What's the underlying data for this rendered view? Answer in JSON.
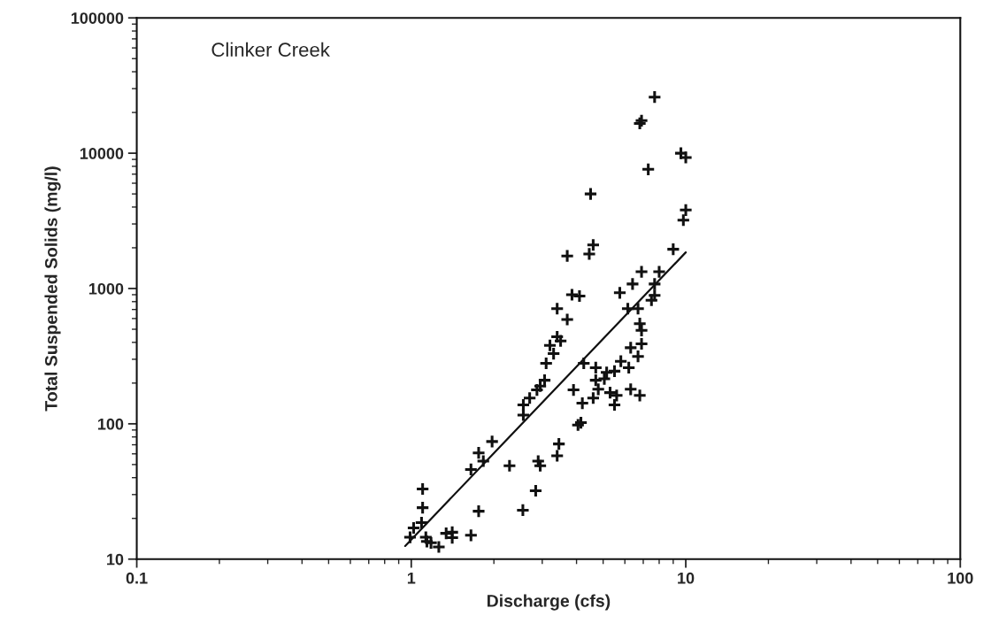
{
  "chart_data": {
    "type": "scatter",
    "xlabel": "Discharge (cfs)",
    "ylabel": "Total Suspended Solids (mg/l)",
    "annotations": [
      "Clinker Creek"
    ],
    "log": "xy",
    "xlim": [
      0.1,
      100
    ],
    "xticks": [
      0.1,
      1,
      10,
      100
    ],
    "ylim": [
      10,
      100000
    ],
    "yticks": [
      10,
      100,
      1000,
      10000,
      100000
    ],
    "grid": false,
    "series": [
      {
        "marker": "cross",
        "color": "#111111",
        "x": [
          7.7,
          6.8,
          6.9,
          9.6,
          10,
          7.3,
          4.5,
          10,
          9.8,
          9.0,
          4.6,
          4.45,
          3.7,
          6.9,
          8.0,
          6.4,
          7.7,
          5.75,
          3.85,
          4.1,
          3.4,
          3.7,
          6.15,
          6.7,
          7.7,
          7.5,
          6.8,
          6.9,
          6.9,
          6.3,
          6.7,
          5.8,
          3.4,
          3.5,
          3.3,
          4.25,
          4.7,
          5.15,
          5.5,
          6.2,
          4.7,
          5.05,
          3.9,
          4.8,
          5.3,
          5.6,
          6.3,
          6.8,
          5.5,
          4.6,
          4.2,
          4.05,
          4.15,
          3.2,
          3.1,
          3.06,
          2.95,
          2.87,
          2.7,
          2.56,
          2.56,
          1.97,
          1.76,
          1.83,
          1.65,
          2.28,
          2.9,
          2.95,
          3.45,
          3.4,
          2.84,
          2.55,
          1.76,
          1.65,
          1.1,
          1.1,
          1.09,
          1.02,
          0.99,
          1.13,
          1.18,
          1.26,
          1.34,
          1.41,
          1.41,
          1.14
        ],
        "values": [
          26000,
          16600,
          17400,
          10000,
          9300,
          7600,
          5000,
          3800,
          3200,
          1950,
          2100,
          1800,
          1740,
          1330,
          1330,
          1080,
          1080,
          930,
          900,
          880,
          710,
          590,
          710,
          710,
          890,
          820,
          550,
          490,
          390,
          365,
          315,
          290,
          440,
          410,
          330,
          280,
          260,
          240,
          245,
          260,
          210,
          215,
          178,
          180,
          170,
          162,
          180,
          162,
          138,
          155,
          142,
          98,
          102,
          380,
          280,
          210,
          190,
          178,
          155,
          138,
          116,
          74,
          61,
          53,
          46,
          49,
          53,
          49,
          71,
          58,
          32,
          23,
          22.6,
          15,
          33,
          24,
          18.6,
          17,
          14.5,
          14.5,
          13.2,
          12.3,
          15.5,
          14.4,
          15.8,
          13.5
        ]
      },
      {
        "type": "line",
        "color": "#111111",
        "x": [
          0.95,
          10
        ],
        "values": [
          12.5,
          1850
        ]
      }
    ]
  }
}
